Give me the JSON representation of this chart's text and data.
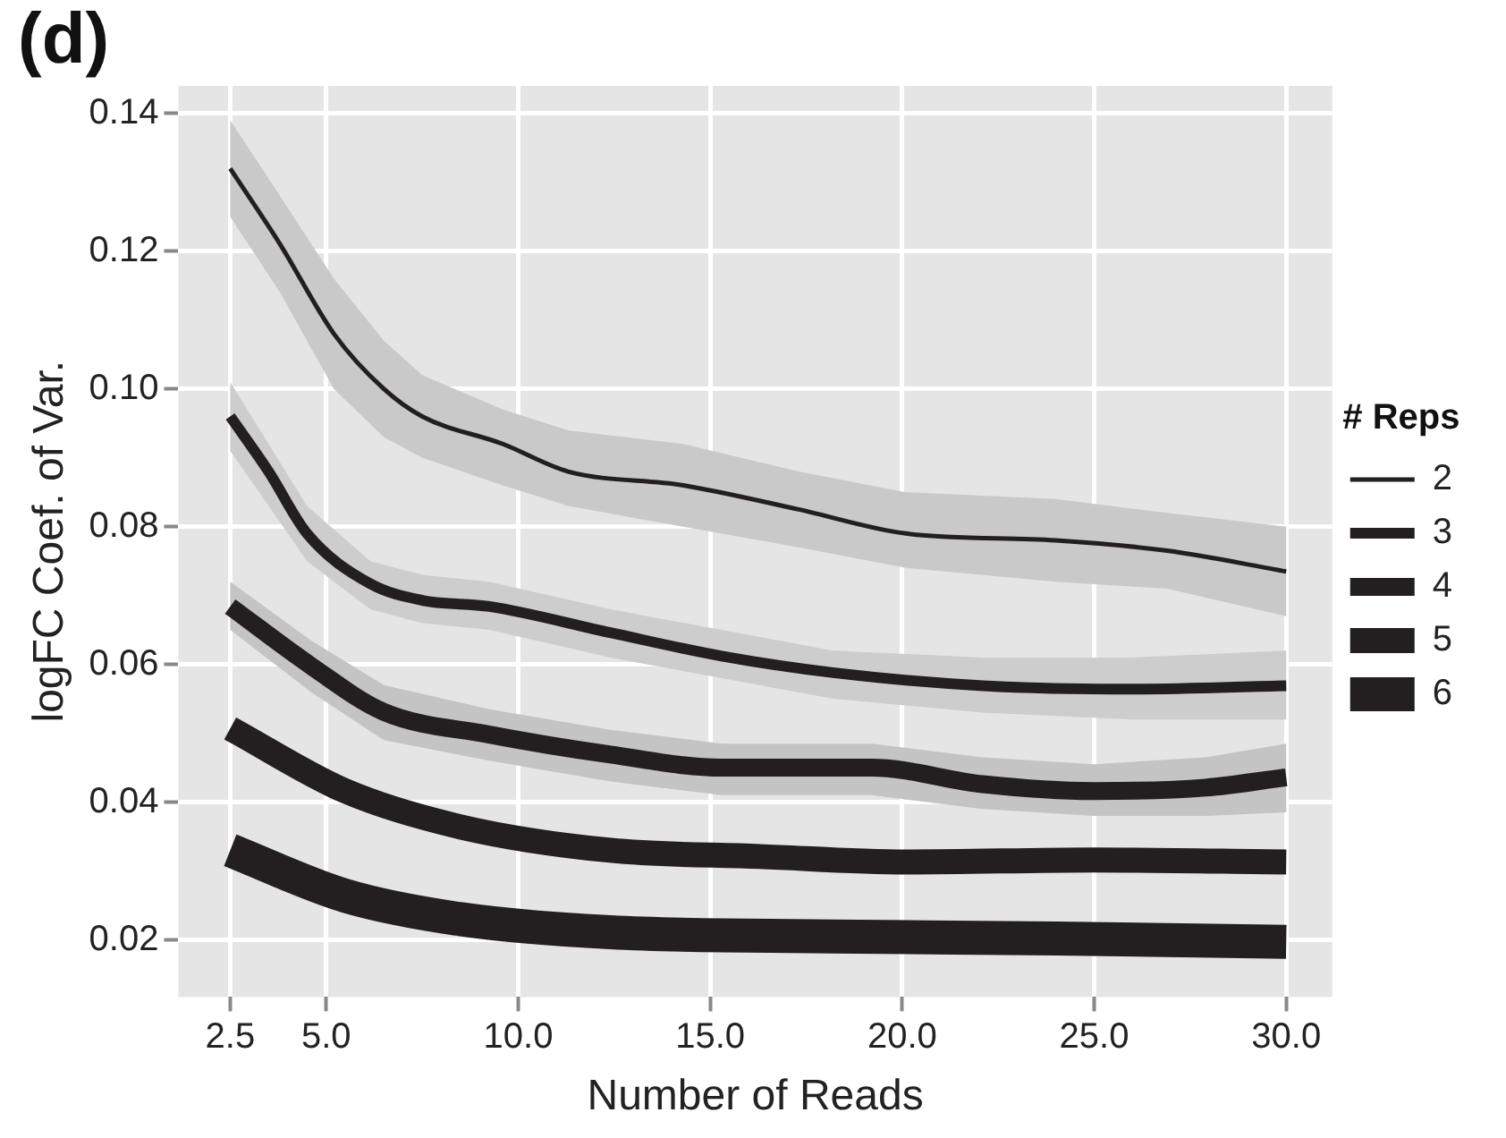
{
  "chart_data": {
    "type": "line",
    "title": "(d)",
    "xlabel": "Number of Reads",
    "ylabel": "logFC Coef. of Var.",
    "legend_title": "# Reps",
    "legend": "right",
    "grid": true,
    "xlim": [
      1.15,
      31.2
    ],
    "ylim": [
      0.0117,
      0.144
    ],
    "xticks": [
      {
        "value": 2.5,
        "label": "2.5"
      },
      {
        "value": 5,
        "label": "5.0"
      },
      {
        "value": 10,
        "label": "10.0"
      },
      {
        "value": 15,
        "label": "15.0"
      },
      {
        "value": 20,
        "label": "20.0"
      },
      {
        "value": 25,
        "label": "25.0"
      },
      {
        "value": 30,
        "label": "30.0"
      }
    ],
    "yticks": [
      {
        "value": 0.02,
        "label": "0.02"
      },
      {
        "value": 0.04,
        "label": "0.04"
      },
      {
        "value": 0.06,
        "label": "0.06"
      },
      {
        "value": 0.08,
        "label": "0.08"
      },
      {
        "value": 0.1,
        "label": "0.10"
      },
      {
        "value": 0.12,
        "label": "0.12"
      },
      {
        "value": 0.14,
        "label": "0.14"
      }
    ],
    "series": [
      {
        "name": "2",
        "color": "#231f20",
        "x": [
          2.5,
          3.8,
          5.2,
          6.5,
          7.5,
          9.6,
          11.3,
          14.3,
          17.3,
          20.1,
          24.0,
          26.9,
          30
        ],
        "values": [
          0.132,
          0.121,
          0.108,
          0.1,
          0.096,
          0.092,
          0.088,
          0.086,
          0.0825,
          0.079,
          0.078,
          0.0765,
          0.0735
        ],
        "upper": [
          0.139,
          0.128,
          0.116,
          0.107,
          0.102,
          0.097,
          0.094,
          0.092,
          0.088,
          0.085,
          0.084,
          0.082,
          0.08
        ],
        "lower": [
          0.125,
          0.114,
          0.1,
          0.093,
          0.09,
          0.086,
          0.083,
          0.08,
          0.077,
          0.074,
          0.072,
          0.071,
          0.067
        ]
      },
      {
        "name": "3",
        "color": "#231f20",
        "x": [
          2.5,
          3.5,
          4.5,
          6.15,
          7.5,
          9.25,
          12.4,
          15.3,
          18.2,
          22.1,
          26,
          30
        ],
        "values": [
          0.096,
          0.088,
          0.079,
          0.0717,
          0.0693,
          0.0684,
          0.0646,
          0.0612,
          0.0588,
          0.0569,
          0.0564,
          0.0569
        ],
        "upper": [
          0.101,
          0.092,
          0.083,
          0.075,
          0.073,
          0.072,
          0.068,
          0.065,
          0.062,
          0.061,
          0.061,
          0.062
        ],
        "lower": [
          0.091,
          0.083,
          0.075,
          0.068,
          0.066,
          0.065,
          0.061,
          0.058,
          0.055,
          0.053,
          0.052,
          0.052
        ]
      },
      {
        "name": "4",
        "color": "#231f20",
        "x": [
          2.5,
          4.6,
          6.5,
          9.25,
          12.4,
          15.3,
          19.2,
          22.1,
          25,
          27.9,
          30
        ],
        "values": [
          0.0684,
          0.0598,
          0.0531,
          0.0498,
          0.0469,
          0.045,
          0.045,
          0.0426,
          0.0416,
          0.0421,
          0.0436
        ],
        "upper": [
          0.072,
          0.0635,
          0.057,
          0.0535,
          0.0505,
          0.0485,
          0.0485,
          0.0465,
          0.0455,
          0.0465,
          0.0485
        ],
        "lower": [
          0.065,
          0.056,
          0.049,
          0.046,
          0.043,
          0.041,
          0.041,
          0.039,
          0.038,
          0.038,
          0.0385
        ]
      },
      {
        "name": "5",
        "color": "#231f20",
        "x": [
          2.5,
          5.5,
          8.5,
          12.4,
          16.3,
          20.1,
          25,
          30
        ],
        "values": [
          0.0507,
          0.0416,
          0.0364,
          0.033,
          0.0321,
          0.0313,
          0.0316,
          0.0313
        ]
      },
      {
        "name": "6",
        "color": "#231f20",
        "x": [
          2.5,
          5.5,
          8.5,
          12.4,
          18.2,
          24,
          30
        ],
        "values": [
          0.033,
          0.0264,
          0.023,
          0.0211,
          0.0205,
          0.0202,
          0.0197
        ]
      }
    ]
  }
}
